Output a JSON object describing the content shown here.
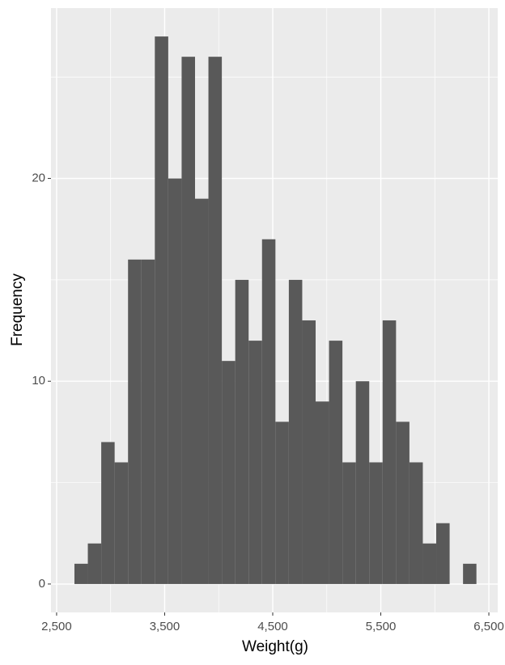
{
  "chart_data": {
    "type": "histogram",
    "x_label": "Weight(g)",
    "y_label": "Frequency",
    "bins": [
      2665,
      2789,
      2913,
      3037,
      3161,
      3285,
      3409,
      3533,
      3657,
      3781,
      3905,
      4029,
      4153,
      4277,
      4401,
      4525,
      4649,
      4773,
      4897,
      5021,
      5145,
      5269,
      5393,
      5517,
      5641,
      5765,
      5889,
      6013,
      6137,
      6261,
      6385
    ],
    "counts": [
      1,
      2,
      7,
      6,
      16,
      16,
      27,
      20,
      26,
      19,
      26,
      11,
      15,
      12,
      17,
      8,
      15,
      13,
      9,
      12,
      6,
      10,
      6,
      13,
      8,
      6,
      2,
      3,
      0,
      1
    ],
    "color": "#595959",
    "xlim": [
      2448,
      6582
    ],
    "ylim": [
      -1.4,
      28.4
    ],
    "xticks": [
      {
        "value": 2500,
        "label": "2,500"
      },
      {
        "value": 3500,
        "label": "3,500"
      },
      {
        "value": 4500,
        "label": "4,500"
      },
      {
        "value": 5500,
        "label": "5,500"
      },
      {
        "value": 6500,
        "label": "6,500"
      }
    ],
    "yticks": [
      0,
      10,
      20
    ],
    "x_minor_grid": [
      3000,
      4000,
      5000,
      6000
    ],
    "y_minor_grid": [
      5,
      15,
      25
    ],
    "grid": true
  }
}
